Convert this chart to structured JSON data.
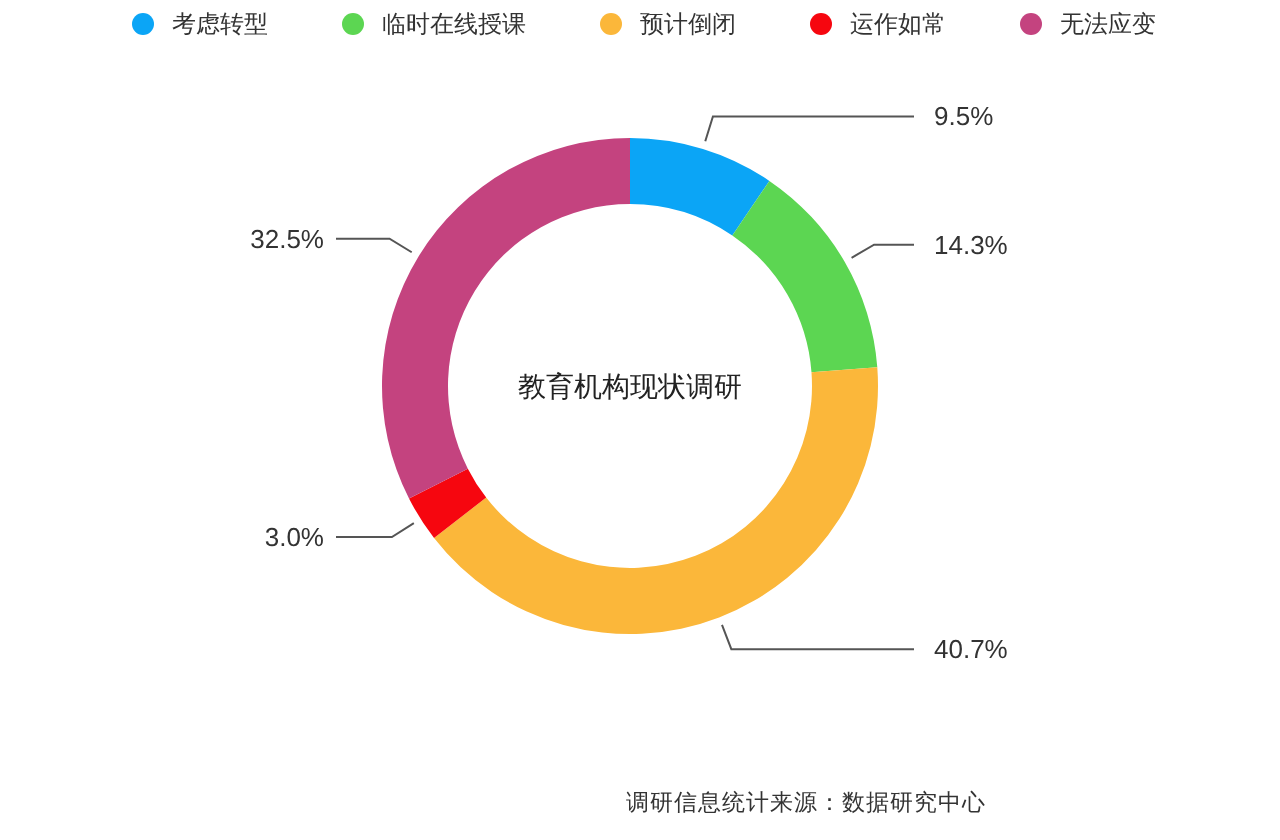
{
  "chart_data": {
    "type": "donut",
    "title": "教育机构现状调研",
    "categories": [
      "考虑转型",
      "临时在线授课",
      "预计倒闭",
      "运作如常",
      "无法应变"
    ],
    "values": [
      9.5,
      14.3,
      40.7,
      3.0,
      32.5
    ],
    "colors": [
      "#0ba5f6",
      "#5cd652",
      "#fbb73a",
      "#f6060f",
      "#c4437f"
    ],
    "value_labels": [
      "9.5%",
      "14.3%",
      "40.7%",
      "3.0%",
      "32.5%"
    ],
    "legend": "top",
    "annotations": [
      "调研信息统计来源：数据研究中心"
    ]
  }
}
